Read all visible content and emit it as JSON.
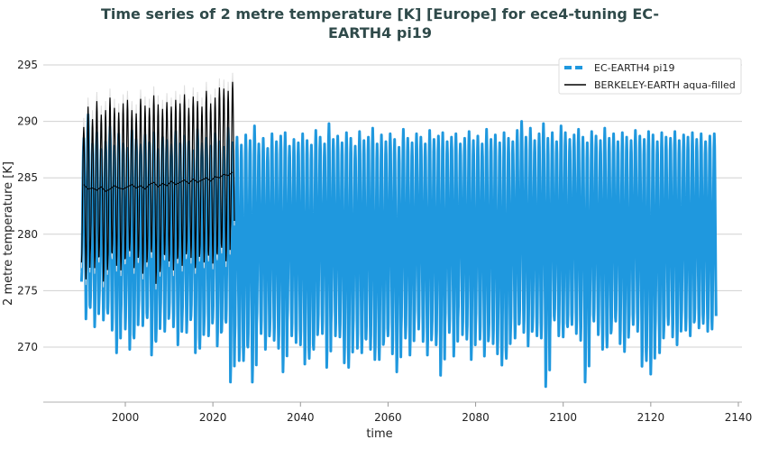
{
  "chart_data": {
    "type": "line",
    "title_line1": "Time series of 2 metre temperature [K] [Europe] for ece4-tuning EC-",
    "title_line2": "EARTH4 pi19",
    "xlabel": "time",
    "ylabel": "2 metre temperature [K]",
    "xlim": [
      1986,
      2141
    ],
    "ylim": [
      265.1,
      295.5
    ],
    "xticks": [
      2000,
      2020,
      2040,
      2060,
      2080,
      2100,
      2120,
      2140
    ],
    "yticks": [
      270,
      275,
      280,
      285,
      290,
      295
    ],
    "grid": "horizontal",
    "legend_position": "top-right",
    "series": [
      {
        "name": "EC-EARTH4 pi19",
        "color": "#1f98de",
        "resolution": "monthly (seasonal cycle shown by annual min/max)",
        "start_year": 1990,
        "annual_max": [
          288.5,
          290.6,
          288.0,
          289.0,
          287.5,
          288.2,
          289.5,
          287.8,
          288.9,
          288.0,
          287.6,
          289.2,
          288.4,
          287.9,
          288.8,
          288.1,
          289.0,
          287.5,
          288.6,
          288.3,
          287.9,
          289.1,
          288.0,
          288.7,
          288.2,
          287.4,
          289.3,
          288.0,
          288.5,
          287.8,
          288.9,
          288.2,
          287.7,
          289.4,
          288.1,
          288.6,
          287.9,
          288.8,
          288.3,
          289.6,
          288.0,
          288.5,
          287.6,
          288.9,
          288.2,
          288.7,
          289.0,
          287.8,
          288.4,
          288.1,
          288.9,
          288.3,
          287.9,
          289.2,
          288.6,
          288.0,
          289.8,
          288.4,
          288.7,
          288.1,
          289.0,
          288.5,
          287.8,
          289.1,
          288.3,
          288.6,
          289.4,
          288.0,
          288.8,
          288.2,
          288.9,
          288.4,
          287.7,
          289.3,
          288.5,
          288.1,
          288.9,
          288.6,
          288.0,
          289.2,
          288.4,
          288.7,
          289.0,
          288.2,
          288.6,
          288.9,
          288.0,
          288.5,
          289.1,
          288.3,
          288.7,
          288.0,
          289.3,
          288.4,
          288.8,
          288.1,
          289.0,
          288.5,
          288.2,
          289.2,
          290.0,
          288.6,
          289.4,
          288.3,
          288.9,
          289.8,
          288.5,
          289.0,
          288.2,
          289.6,
          289.0,
          288.4,
          288.8,
          289.3,
          288.6,
          288.1,
          289.1,
          288.7,
          288.3,
          289.4,
          288.5,
          288.9,
          288.2,
          289.0,
          288.6,
          288.3,
          289.2,
          288.7,
          288.4,
          289.1,
          288.8,
          288.2,
          289.0,
          288.6,
          288.5,
          289.1,
          288.3,
          288.8,
          288.6,
          289.0,
          288.4,
          288.9,
          288.2,
          288.7,
          288.9
        ],
        "annual_min": [
          275.8,
          272.5,
          273.5,
          271.8,
          274.0,
          272.4,
          273.0,
          271.5,
          269.5,
          272.8,
          271.6,
          269.8,
          270.8,
          273.2,
          271.9,
          272.6,
          269.3,
          270.5,
          272.9,
          271.4,
          273.0,
          271.8,
          270.2,
          272.5,
          271.3,
          272.8,
          269.5,
          269.9,
          272.0,
          271.0,
          272.6,
          270.1,
          271.4,
          272.2,
          266.9,
          270.7,
          268.8,
          268.8,
          270.0,
          266.9,
          272.0,
          271.2,
          269.8,
          271.5,
          270.6,
          269.9,
          267.8,
          272.3,
          271.0,
          270.4,
          270.2,
          268.5,
          269.0,
          269.8,
          271.8,
          271.2,
          268.2,
          272.1,
          271.0,
          270.9,
          268.6,
          268.2,
          271.3,
          269.9,
          269.5,
          270.7,
          269.8,
          268.9,
          268.9,
          270.5,
          271.0,
          269.4,
          267.8,
          271.5,
          270.8,
          269.3,
          272.1,
          271.6,
          270.5,
          269.3,
          271.2,
          270.2,
          267.5,
          272.0,
          271.3,
          269.2,
          272.6,
          271.1,
          270.7,
          268.9,
          271.9,
          270.7,
          269.2,
          271.0,
          270.3,
          269.4,
          268.4,
          269.0,
          271.5,
          270.8,
          272.1,
          271.3,
          270.1,
          271.7,
          271.0,
          270.8,
          266.5,
          271.6,
          272.4,
          271.0,
          270.9,
          271.8,
          272.0,
          271.2,
          270.6,
          266.9,
          271.7,
          272.3,
          271.1,
          269.8,
          270.0,
          271.5,
          272.3,
          270.3,
          269.6,
          271.8,
          272.0,
          271.4,
          268.3,
          268.8,
          267.6,
          271.3,
          269.5,
          271.6,
          272.0,
          270.9,
          270.2,
          272.2,
          271.5,
          271.0,
          272.4,
          271.7,
          272.1,
          271.4,
          271.6
        ]
      },
      {
        "name": "BERKELEY-EARTH aqua-filled",
        "color": "#000000",
        "resolution": "monthly (seasonal cycle shown by annual min/max) with annual mean",
        "start_year": 1990,
        "annual_max": [
          289.5,
          291.3,
          290.2,
          291.8,
          290.6,
          291.0,
          292.1,
          291.2,
          290.8,
          291.6,
          291.9,
          291.0,
          290.7,
          292.0,
          291.4,
          291.2,
          292.3,
          291.5,
          291.1,
          291.7,
          291.3,
          291.9,
          291.6,
          292.4,
          291.2,
          292.2,
          291.8,
          291.3,
          292.7,
          291.6,
          292.1,
          293.0,
          292.9,
          292.7,
          293.5
        ],
        "annual_min": [
          277.5,
          276.0,
          278.2,
          277.0,
          278.0,
          275.8,
          277.5,
          278.3,
          277.2,
          276.8,
          277.9,
          278.5,
          277.0,
          278.0,
          276.5,
          277.8,
          278.4,
          275.6,
          277.3,
          278.2,
          277.6,
          276.8,
          278.0,
          277.2,
          278.6,
          277.9,
          277.0,
          278.3,
          277.5,
          278.1,
          277.4,
          278.2,
          278.8,
          277.6,
          280.3
        ],
        "annual_mean": [
          284.4,
          284.0,
          284.1,
          283.9,
          284.2,
          283.8,
          284.0,
          284.3,
          284.1,
          284.0,
          284.2,
          284.4,
          284.1,
          284.3,
          284.0,
          284.4,
          284.6,
          284.2,
          284.5,
          284.3,
          284.7,
          284.4,
          284.6,
          284.8,
          284.5,
          284.9,
          284.6,
          284.8,
          285.0,
          284.7,
          285.1,
          285.0,
          285.3,
          285.2,
          285.5
        ]
      }
    ]
  }
}
